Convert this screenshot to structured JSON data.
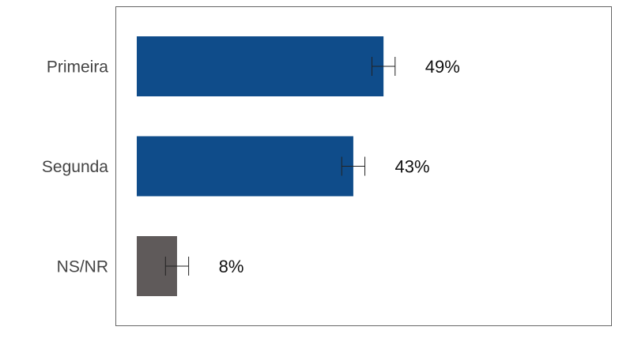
{
  "chart_data": {
    "type": "bar",
    "orientation": "horizontal",
    "categories": [
      "Primeira",
      "Segunda",
      "NS/NR"
    ],
    "values": [
      49,
      43,
      8
    ],
    "value_labels": [
      "49%",
      "43%",
      "8%"
    ],
    "errors": [
      2.3,
      2.3,
      2.3
    ],
    "colors": [
      "#0f4c8a",
      "#0f4c8a",
      "#5f5a5a"
    ],
    "grid": false
  }
}
